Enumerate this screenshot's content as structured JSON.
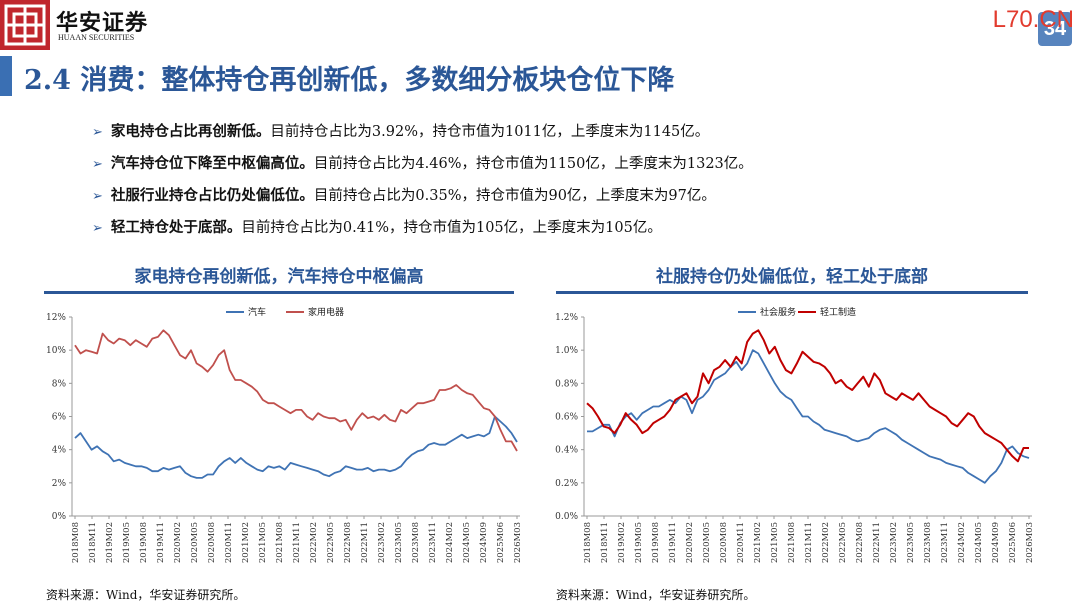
{
  "header": {
    "logo_name": "华安证券",
    "logo_sub": "HUAAN SECURITIES",
    "watermark": "L70.CN",
    "page_number": "34",
    "logo_icon": "huaan-seal-icon",
    "brand_color": "#c0262d",
    "accent_color": "#2b5797"
  },
  "title": "2.4 消费：整体持仓再创新低，多数细分板块仓位下降",
  "bullets": [
    {
      "bold": "家电持仓占比再创新低。",
      "text": "目前持仓占比为3.92%，持仓市值为1011亿，上季度末为1145亿。"
    },
    {
      "bold": "汽车持仓位下降至中枢偏高位。",
      "text": "目前持仓占比为4.46%，持仓市值为1150亿，上季度末为1323亿。"
    },
    {
      "bold": "社服行业持仓占比仍处偏低位。",
      "text": "目前持仓占比为0.35%，持仓市值为90亿，上季度末为97亿。"
    },
    {
      "bold": "轻工持仓处于底部。",
      "text": "目前持仓占比为0.41%，持仓市值为105亿，上季度末为105亿。"
    }
  ],
  "chart_data": [
    {
      "type": "line",
      "title": "家电持仓再创新低，汽车持仓中枢偏高",
      "source": "资料来源：Wind，华安证券研究所。",
      "x_ticks": [
        "2018M08",
        "2018M11",
        "2019M02",
        "2019M05",
        "2019M08",
        "2019M11",
        "2020M02",
        "2020M05",
        "2020M08",
        "2020M11",
        "2021M02",
        "2021M05",
        "2021M08",
        "2021M11",
        "2022M02",
        "2022M05",
        "2022M08",
        "2022M11",
        "2023M02",
        "2023M05",
        "2023M08",
        "2023M11",
        "2024M02",
        "2024M05",
        "2024M09",
        "2025M06",
        "2026M03"
      ],
      "y_ticks": [
        "0%",
        "2%",
        "4%",
        "6%",
        "8%",
        "10%",
        "12%"
      ],
      "ylim": [
        0,
        12
      ],
      "legend_position": "top",
      "series": [
        {
          "name": "汽车",
          "color": "#3f73b4",
          "values": [
            4.7,
            5.0,
            4.5,
            4.0,
            4.2,
            3.9,
            3.7,
            3.3,
            3.4,
            3.2,
            3.1,
            3.0,
            3.0,
            2.9,
            2.7,
            2.7,
            2.9,
            2.8,
            2.9,
            3.0,
            2.6,
            2.4,
            2.3,
            2.3,
            2.5,
            2.5,
            3.0,
            3.3,
            3.5,
            3.2,
            3.5,
            3.2,
            3.0,
            2.8,
            2.7,
            3.0,
            2.9,
            3.0,
            2.8,
            3.2,
            3.1,
            3.0,
            2.9,
            2.8,
            2.7,
            2.5,
            2.4,
            2.6,
            2.7,
            3.0,
            2.9,
            2.8,
            2.8,
            2.9,
            2.7,
            2.8,
            2.8,
            2.7,
            2.8,
            3.0,
            3.4,
            3.7,
            3.9,
            4.0,
            4.3,
            4.4,
            4.3,
            4.3,
            4.5,
            4.7,
            4.9,
            4.7,
            4.8,
            4.9,
            4.8,
            5.0,
            6.0,
            5.7,
            5.4,
            5.0,
            4.46
          ]
        },
        {
          "name": "家用电器",
          "color": "#c0504d",
          "values": [
            10.3,
            9.8,
            10.0,
            9.9,
            9.8,
            11.0,
            10.6,
            10.4,
            10.7,
            10.6,
            10.3,
            10.6,
            10.4,
            10.2,
            10.7,
            10.8,
            11.2,
            10.9,
            10.3,
            9.7,
            9.5,
            10.0,
            9.2,
            9.0,
            8.7,
            9.1,
            9.7,
            10.0,
            8.8,
            8.2,
            8.2,
            8.0,
            7.8,
            7.5,
            7.0,
            6.8,
            6.8,
            6.6,
            6.4,
            6.2,
            6.4,
            6.4,
            6.0,
            5.8,
            6.2,
            6.0,
            5.9,
            5.9,
            5.7,
            5.8,
            5.2,
            5.8,
            6.2,
            5.9,
            6.0,
            5.8,
            6.1,
            5.8,
            5.7,
            6.4,
            6.2,
            6.5,
            6.8,
            6.8,
            6.9,
            7.0,
            7.6,
            7.6,
            7.7,
            7.9,
            7.6,
            7.4,
            7.3,
            6.9,
            6.5,
            6.4,
            6.0,
            5.2,
            4.5,
            4.5,
            3.92
          ]
        }
      ]
    },
    {
      "type": "line",
      "title": "社服持仓仍处偏低位，轻工处于底部",
      "source": "资料来源：Wind，华安证券研究所。",
      "x_ticks": [
        "2018M08",
        "2018M11",
        "2019M02",
        "2019M05",
        "2019M08",
        "2019M11",
        "2020M02",
        "2020M05",
        "2020M08",
        "2020M11",
        "2021M02",
        "2021M05",
        "2021M08",
        "2021M11",
        "2022M02",
        "2022M05",
        "2022M08",
        "2022M11",
        "2023M02",
        "2023M05",
        "2023M08",
        "2023M11",
        "2024M02",
        "2024M05",
        "2024M09",
        "2025M06",
        "2026M03"
      ],
      "y_ticks": [
        "0.0%",
        "0.2%",
        "0.4%",
        "0.6%",
        "0.8%",
        "1.0%",
        "1.2%"
      ],
      "ylim": [
        0,
        1.2
      ],
      "legend_position": "top",
      "series": [
        {
          "name": "社会服务",
          "color": "#3f73b4",
          "values": [
            0.51,
            0.51,
            0.53,
            0.55,
            0.55,
            0.48,
            0.56,
            0.6,
            0.62,
            0.58,
            0.62,
            0.64,
            0.66,
            0.66,
            0.68,
            0.7,
            0.68,
            0.72,
            0.7,
            0.62,
            0.7,
            0.72,
            0.76,
            0.82,
            0.84,
            0.86,
            0.9,
            0.93,
            0.88,
            0.92,
            1.0,
            0.98,
            0.92,
            0.86,
            0.8,
            0.75,
            0.72,
            0.7,
            0.65,
            0.6,
            0.6,
            0.57,
            0.55,
            0.52,
            0.51,
            0.5,
            0.49,
            0.48,
            0.46,
            0.45,
            0.46,
            0.47,
            0.5,
            0.52,
            0.53,
            0.51,
            0.49,
            0.46,
            0.44,
            0.42,
            0.4,
            0.38,
            0.36,
            0.35,
            0.34,
            0.32,
            0.31,
            0.3,
            0.29,
            0.26,
            0.24,
            0.22,
            0.2,
            0.24,
            0.27,
            0.32,
            0.4,
            0.42,
            0.38,
            0.36,
            0.35
          ]
        },
        {
          "name": "轻工制造",
          "color": "#c00000",
          "values": [
            0.68,
            0.65,
            0.6,
            0.54,
            0.53,
            0.5,
            0.55,
            0.62,
            0.58,
            0.55,
            0.5,
            0.52,
            0.56,
            0.58,
            0.6,
            0.64,
            0.7,
            0.72,
            0.74,
            0.68,
            0.72,
            0.86,
            0.8,
            0.88,
            0.9,
            0.94,
            0.9,
            0.96,
            0.92,
            1.05,
            1.1,
            1.12,
            1.06,
            0.98,
            1.02,
            0.94,
            0.88,
            0.86,
            0.92,
            0.99,
            0.96,
            0.93,
            0.92,
            0.9,
            0.86,
            0.8,
            0.82,
            0.78,
            0.76,
            0.8,
            0.84,
            0.78,
            0.86,
            0.82,
            0.74,
            0.72,
            0.7,
            0.74,
            0.72,
            0.7,
            0.74,
            0.7,
            0.66,
            0.64,
            0.62,
            0.6,
            0.56,
            0.54,
            0.58,
            0.62,
            0.6,
            0.54,
            0.5,
            0.48,
            0.46,
            0.44,
            0.4,
            0.36,
            0.33,
            0.41,
            0.41
          ]
        }
      ]
    }
  ]
}
